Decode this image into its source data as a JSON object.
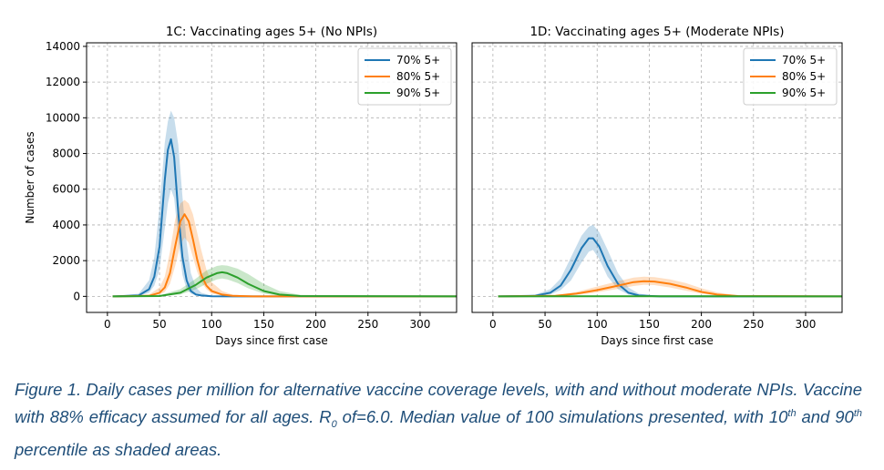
{
  "chart_data": [
    {
      "type": "line",
      "title": "1C: Vaccinating ages 5+ (No NPIs)",
      "xlabel": "Days since first case",
      "ylabel": "Number of cases",
      "xlim": [
        -20,
        335
      ],
      "ylim": [
        -900,
        14200
      ],
      "xticks": [
        0,
        50,
        100,
        150,
        200,
        250,
        300
      ],
      "yticks": [
        0,
        2000,
        4000,
        6000,
        8000,
        10000,
        12000,
        14000
      ],
      "grid": true,
      "legend_position": "top-right",
      "series": [
        {
          "name": "70% 5+",
          "color": "#1f77b4",
          "x": [
            5,
            30,
            40,
            45,
            50,
            55,
            58,
            61,
            64,
            68,
            72,
            76,
            80,
            85,
            90,
            100,
            120,
            335
          ],
          "median": [
            0,
            50,
            400,
            1100,
            2800,
            6500,
            8200,
            8800,
            7800,
            4700,
            2200,
            900,
            300,
            100,
            50,
            10,
            0,
            0
          ],
          "lower": [
            0,
            20,
            200,
            600,
            1500,
            3800,
            5200,
            6000,
            5500,
            3200,
            1200,
            400,
            150,
            50,
            20,
            5,
            0,
            0
          ],
          "upper": [
            0,
            150,
            900,
            2200,
            5000,
            8600,
            9800,
            10400,
            10000,
            8500,
            5600,
            3000,
            1300,
            500,
            200,
            40,
            0,
            0
          ]
        },
        {
          "name": "80% 5+",
          "color": "#ff7f0e",
          "x": [
            5,
            40,
            50,
            55,
            60,
            65,
            70,
            74,
            78,
            82,
            86,
            90,
            95,
            100,
            110,
            120,
            140,
            335
          ],
          "median": [
            0,
            30,
            200,
            500,
            1300,
            2800,
            4200,
            4600,
            4200,
            3200,
            2100,
            1200,
            600,
            300,
            100,
            30,
            0,
            0
          ],
          "lower": [
            0,
            10,
            100,
            250,
            700,
            1700,
            2900,
            3300,
            3000,
            2200,
            1400,
            800,
            400,
            150,
            50,
            15,
            0,
            0
          ],
          "upper": [
            0,
            100,
            500,
            1100,
            2500,
            4300,
            5200,
            5400,
            5200,
            4600,
            3600,
            2600,
            1500,
            800,
            300,
            100,
            10,
            0
          ]
        },
        {
          "name": "90% 5+",
          "color": "#2ca02c",
          "x": [
            5,
            50,
            70,
            85,
            95,
            105,
            110,
            115,
            125,
            135,
            150,
            165,
            185,
            335
          ],
          "median": [
            0,
            20,
            200,
            650,
            1050,
            1300,
            1350,
            1300,
            1050,
            700,
            300,
            100,
            20,
            0
          ],
          "lower": [
            0,
            10,
            100,
            400,
            700,
            950,
            1000,
            950,
            750,
            450,
            150,
            40,
            5,
            0
          ],
          "upper": [
            0,
            60,
            400,
            1000,
            1450,
            1700,
            1750,
            1720,
            1550,
            1250,
            700,
            300,
            80,
            0
          ]
        }
      ]
    },
    {
      "type": "line",
      "title": "1D: Vaccinating ages 5+ (Moderate NPIs)",
      "xlabel": "Days since first case",
      "ylabel": "",
      "xlim": [
        -20,
        335
      ],
      "ylim": [
        -900,
        14200
      ],
      "xticks": [
        0,
        50,
        100,
        150,
        200,
        250,
        300
      ],
      "yticks": [],
      "grid": true,
      "legend_position": "top-right",
      "series": [
        {
          "name": "70% 5+",
          "color": "#1f77b4",
          "x": [
            5,
            40,
            55,
            65,
            75,
            85,
            92,
            96,
            102,
            110,
            120,
            130,
            140,
            160,
            335
          ],
          "median": [
            0,
            30,
            200,
            600,
            1500,
            2700,
            3250,
            3250,
            2800,
            1700,
            700,
            200,
            50,
            0,
            0
          ],
          "lower": [
            0,
            10,
            100,
            350,
            900,
            1900,
            2500,
            2600,
            2100,
            1100,
            400,
            100,
            20,
            0,
            0
          ],
          "upper": [
            0,
            80,
            400,
            1000,
            2200,
            3400,
            3900,
            4000,
            3600,
            2600,
            1300,
            500,
            150,
            10,
            0
          ]
        },
        {
          "name": "80% 5+",
          "color": "#ff7f0e",
          "x": [
            5,
            60,
            80,
            100,
            120,
            135,
            145,
            155,
            170,
            185,
            200,
            215,
            235,
            335
          ],
          "median": [
            0,
            30,
            150,
            350,
            600,
            800,
            850,
            830,
            700,
            500,
            250,
            100,
            20,
            0
          ],
          "lower": [
            0,
            10,
            80,
            220,
            420,
            580,
            650,
            630,
            500,
            320,
            150,
            50,
            10,
            0
          ],
          "upper": [
            0,
            60,
            250,
            550,
            850,
            1050,
            1100,
            1080,
            950,
            750,
            450,
            220,
            60,
            0
          ]
        },
        {
          "name": "90% 5+",
          "color": "#2ca02c",
          "x": [
            5,
            100,
            200,
            335
          ],
          "median": [
            0,
            10,
            10,
            0
          ],
          "lower": [
            0,
            5,
            5,
            0
          ],
          "upper": [
            0,
            20,
            20,
            0
          ]
        }
      ]
    }
  ],
  "caption": {
    "part1": "Figure 1. Daily cases per million for alternative vaccine coverage levels, with and without moderate NPIs. Vaccine with 88% efficacy assumed for all ages. R",
    "sub": "0",
    "part2": " of=6.0. Median value of 100 simulations presented, with 10",
    "sup1": "th",
    "part3": " and 90",
    "sup2": "th",
    "part4": " percentile as shaded areas."
  }
}
